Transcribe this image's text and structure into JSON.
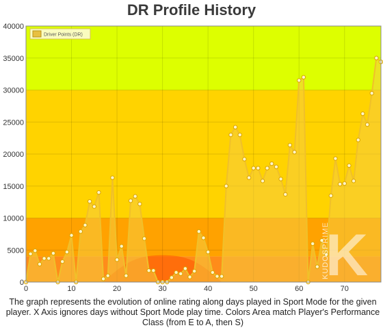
{
  "chart_data": {
    "type": "area",
    "title": "DR Profile History",
    "xlabel": "",
    "ylabel": "",
    "xlim": [
      0,
      78
    ],
    "ylim": [
      0,
      40000
    ],
    "x_ticks": [
      0,
      10,
      20,
      30,
      40,
      50,
      60,
      70
    ],
    "y_ticks": [
      0,
      5000,
      10000,
      15000,
      20000,
      25000,
      30000,
      35000,
      40000
    ],
    "grid": true,
    "legend_position": "top-left",
    "series": [
      {
        "name": "Driver Points (DR)",
        "x": [
          0,
          1,
          2,
          3,
          4,
          5,
          6,
          7,
          8,
          9,
          10,
          11,
          12,
          13,
          14,
          15,
          16,
          17,
          18,
          19,
          20,
          21,
          22,
          23,
          24,
          25,
          26,
          27,
          28,
          29,
          30,
          31,
          32,
          33,
          34,
          35,
          36,
          37,
          38,
          39,
          40,
          41,
          42,
          43,
          44,
          45,
          46,
          47,
          48,
          49,
          50,
          51,
          52,
          53,
          54,
          55,
          56,
          57,
          58,
          59,
          60,
          61,
          62,
          63,
          64,
          65,
          66,
          67,
          68,
          69,
          70,
          71,
          72,
          73,
          74,
          75,
          76,
          77,
          78
        ],
        "values": [
          0,
          4400,
          4900,
          2800,
          3700,
          3700,
          4500,
          0,
          3200,
          4700,
          7300,
          0,
          7900,
          8900,
          12600,
          11800,
          14000,
          500,
          1000,
          16300,
          3500,
          5600,
          1000,
          12700,
          13400,
          12200,
          6800,
          1800,
          1800,
          0,
          0,
          0,
          700,
          1500,
          1300,
          2100,
          800,
          1700,
          7900,
          6900,
          4700,
          1500,
          900,
          900,
          15000,
          23000,
          24200,
          23000,
          19200,
          16300,
          17800,
          17800,
          15800,
          17800,
          18500,
          18000,
          16100,
          13700,
          21400,
          20300,
          31500,
          32000,
          0,
          6000,
          2400,
          6500,
          4300,
          13500,
          19300,
          15300,
          15400,
          18200,
          15800,
          22200,
          26300,
          24600,
          29500,
          35000,
          34400
        ]
      }
    ]
  },
  "performance_bands": [
    {
      "from": 0,
      "to": 4000,
      "color": "#ff8c1a"
    },
    {
      "from": 4000,
      "to": 10000,
      "color": "#ffa200"
    },
    {
      "from": 10000,
      "to": 30000,
      "color": "#ffd300"
    },
    {
      "from": 30000,
      "to": 40000,
      "color": "#ddff00"
    }
  ],
  "colors": {
    "area_fill": "#f5cc40",
    "line": "#f0c02a",
    "point_fill": "#fff5c8",
    "point_stroke": "#d9a400",
    "low_zone": "#ff5500"
  },
  "watermark": {
    "text": "KUDOSPRIME",
    "logo_letter": "K"
  },
  "caption": "The graph represents the evolution of online rating along days played in Sport Mode for the given player. X Axis ignores days without Sport Mode play time. Colors Area match Player's Performance Class (from E to A, then S)"
}
